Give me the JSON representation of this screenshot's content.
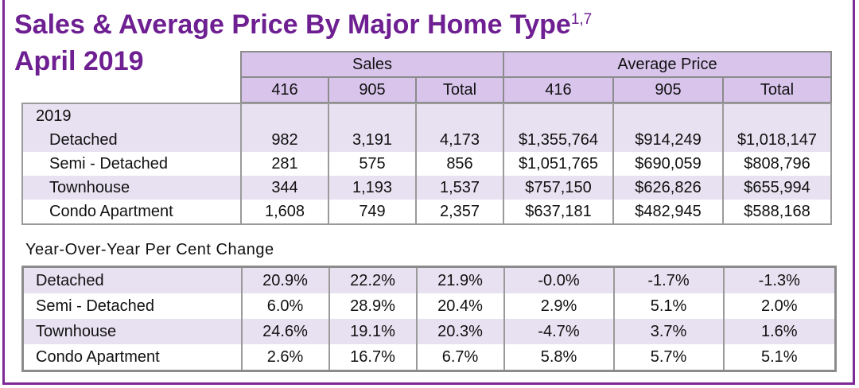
{
  "title": "Sales & Average Price By Major Home Type",
  "title_superscript": "1,7",
  "subtitle": "April 2019",
  "header": {
    "groups": [
      "Sales",
      "Average Price"
    ],
    "columns": [
      "416",
      "905",
      "Total",
      "416",
      "905",
      "Total"
    ]
  },
  "year_label": "2019",
  "sales_rows": [
    {
      "label": "Detached",
      "values": [
        "982",
        "3,191",
        "4,173",
        "$1,355,764",
        "$914,249",
        "$1,018,147"
      ]
    },
    {
      "label": "Semi - Detached",
      "values": [
        "281",
        "575",
        "856",
        "$1,051,765",
        "$690,059",
        "$808,796"
      ]
    },
    {
      "label": "Townhouse",
      "values": [
        "344",
        "1,193",
        "1,537",
        "$757,150",
        "$626,826",
        "$655,994"
      ]
    },
    {
      "label": "Condo Apartment",
      "values": [
        "1,608",
        "749",
        "2,357",
        "$637,181",
        "$482,945",
        "$588,168"
      ]
    }
  ],
  "yoy_label": "Year-Over-Year Per Cent Change",
  "yoy_rows": [
    {
      "label": "Detached",
      "values": [
        "20.9%",
        "22.2%",
        "21.9%",
        "-0.0%",
        "-1.7%",
        "-1.3%"
      ]
    },
    {
      "label": "Semi - Detached",
      "values": [
        "6.0%",
        "28.9%",
        "20.4%",
        "2.9%",
        "5.1%",
        "2.0%"
      ]
    },
    {
      "label": "Townhouse",
      "values": [
        "24.6%",
        "19.1%",
        "20.3%",
        "-4.7%",
        "3.7%",
        "1.6%"
      ]
    },
    {
      "label": "Condo Apartment",
      "values": [
        "2.6%",
        "16.7%",
        "6.7%",
        "5.8%",
        "5.7%",
        "5.1%"
      ]
    }
  ],
  "colors": {
    "title": "#6e1f91",
    "header_bg": "#d9c5ec",
    "band_bg": "#e8e1f1",
    "frame": "#7d2a97"
  }
}
